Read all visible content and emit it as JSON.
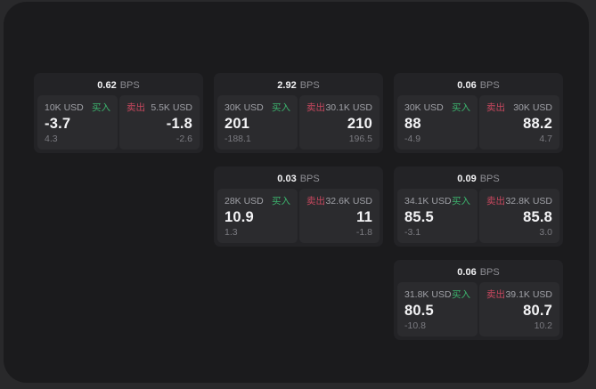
{
  "labels": {
    "bps_suffix": "BPS",
    "buy": "买入",
    "sell": "卖出"
  },
  "colors": {
    "buy_accent": "#3cb46e",
    "sell_accent": "#c9485f",
    "outer_background": "#29292b",
    "window_background": "#1b1b1d",
    "card_background": "#232326",
    "panel_background": "#2b2b2e"
  },
  "cards": [
    {
      "bps": "0.62",
      "buy": {
        "amount": "10K USD",
        "price": "-3.7",
        "delta": "4.3"
      },
      "sell": {
        "amount": "5.5K USD",
        "price": "-1.8",
        "delta": "-2.6"
      }
    },
    {
      "bps": "2.92",
      "buy": {
        "amount": "30K USD",
        "price": "201",
        "delta": "-188.1"
      },
      "sell": {
        "amount": "30.1K USD",
        "price": "210",
        "delta": "196.5"
      }
    },
    {
      "bps": "0.06",
      "buy": {
        "amount": "30K USD",
        "price": "88",
        "delta": "-4.9"
      },
      "sell": {
        "amount": "30K USD",
        "price": "88.2",
        "delta": "4.7"
      }
    },
    {
      "bps": "0.03",
      "buy": {
        "amount": "28K USD",
        "price": "10.9",
        "delta": "1.3"
      },
      "sell": {
        "amount": "32.6K USD",
        "price": "11",
        "delta": "-1.8"
      }
    },
    {
      "bps": "0.09",
      "buy": {
        "amount": "34.1K USD",
        "price": "85.5",
        "delta": "-3.1"
      },
      "sell": {
        "amount": "32.8K USD",
        "price": "85.8",
        "delta": "3.0"
      }
    },
    {
      "bps": "0.06",
      "buy": {
        "amount": "31.8K USD",
        "price": "80.5",
        "delta": "-10.8"
      },
      "sell": {
        "amount": "39.1K USD",
        "price": "80.7",
        "delta": "10.2"
      }
    }
  ]
}
